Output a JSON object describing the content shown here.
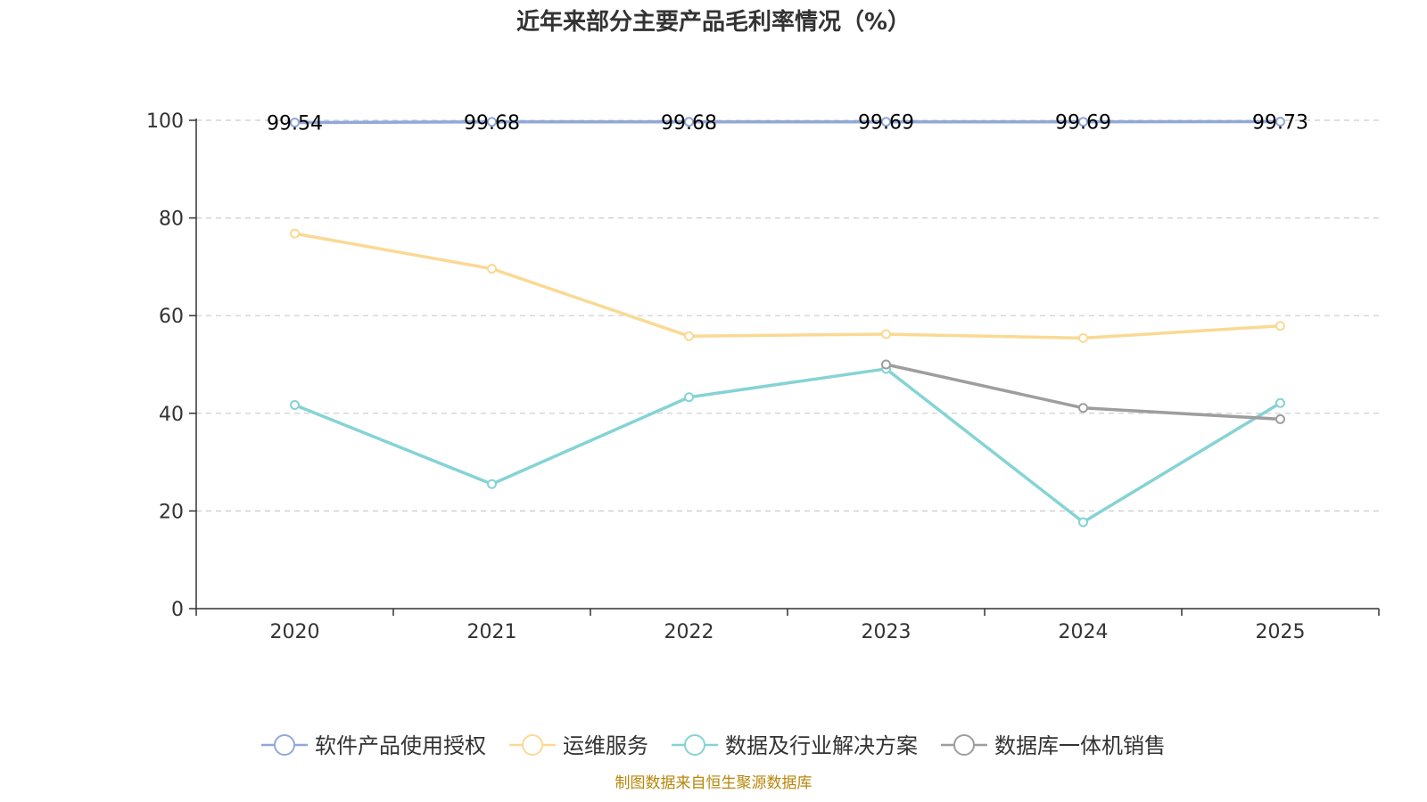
{
  "colors": {
    "series": [
      "#91a8d8",
      "#fad994",
      "#85d3d5",
      "#9e9e9e"
    ],
    "source": "#b8860b",
    "grid": "#cccccc",
    "axis": "#333333"
  },
  "chart_data": {
    "type": "line",
    "title": "近年来部分主要产品毛利率情况（%）",
    "categories": [
      "2020",
      "2021",
      "2022",
      "2023",
      "2024",
      "2025"
    ],
    "ylim": [
      0,
      100
    ],
    "yticks": [
      0,
      20,
      40,
      60,
      80,
      100
    ],
    "grid": true,
    "legend_position": "bottom",
    "series": [
      {
        "name": "软件产品使用授权",
        "values": [
          99.54,
          99.68,
          99.68,
          99.69,
          99.69,
          99.73
        ],
        "labels": [
          "99.54",
          "99.68",
          "99.68",
          "99.69",
          "99.69",
          "99.73"
        ]
      },
      {
        "name": "运维服务",
        "values": [
          76.8,
          69.6,
          55.8,
          56.2,
          55.4,
          57.9
        ]
      },
      {
        "name": "数据及行业解决方案",
        "values": [
          41.7,
          25.5,
          43.3,
          49.1,
          17.7,
          42.1
        ]
      },
      {
        "name": "数据库一体机销售",
        "values": [
          null,
          null,
          null,
          50.0,
          41.1,
          38.8
        ]
      }
    ],
    "source": "制图数据来自恒生聚源数据库"
  }
}
